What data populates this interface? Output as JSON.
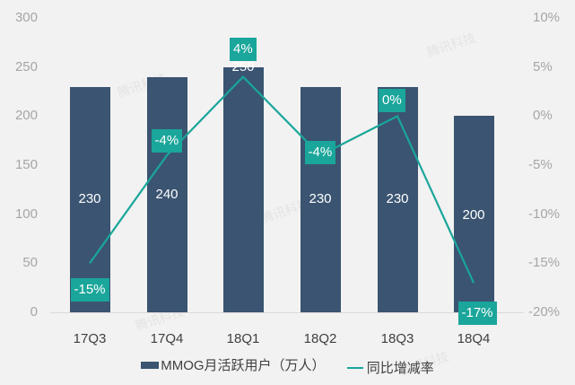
{
  "chart_data": {
    "type": "bar+line",
    "title": "",
    "categories": [
      "17Q3",
      "17Q4",
      "18Q1",
      "18Q2",
      "18Q3",
      "18Q4"
    ],
    "series": [
      {
        "name": "MMOG月活跃用户（万人）",
        "type": "bar",
        "axis": "left",
        "color": "#3a5471",
        "values": [
          230,
          240,
          250,
          230,
          230,
          200
        ],
        "labels": [
          "230",
          "240",
          "250",
          "230",
          "230",
          "200"
        ]
      },
      {
        "name": "同比增减率",
        "type": "line",
        "axis": "right",
        "color": "#1aa69a",
        "values": [
          -15,
          -4,
          4,
          -4,
          0,
          -17
        ],
        "labels": [
          "-15%",
          "-4%",
          "4%",
          "-4%",
          "0%",
          "-17%"
        ]
      }
    ],
    "left_axis": {
      "ylim": [
        0,
        300
      ],
      "ticks": [
        "0",
        "50",
        "100",
        "150",
        "200",
        "250",
        "300"
      ]
    },
    "right_axis": {
      "ylim": [
        -20,
        10
      ],
      "ticks": [
        "-20%",
        "-15%",
        "-10%",
        "-5%",
        "0%",
        "5%",
        "10%"
      ]
    },
    "xlabel": "",
    "ylabel": "",
    "grid": false,
    "legend_position": "bottom"
  },
  "legend": {
    "bar_label": "MMOG月活跃用户（万人）",
    "line_label": "同比增减率"
  },
  "watermark": "腾讯科技"
}
